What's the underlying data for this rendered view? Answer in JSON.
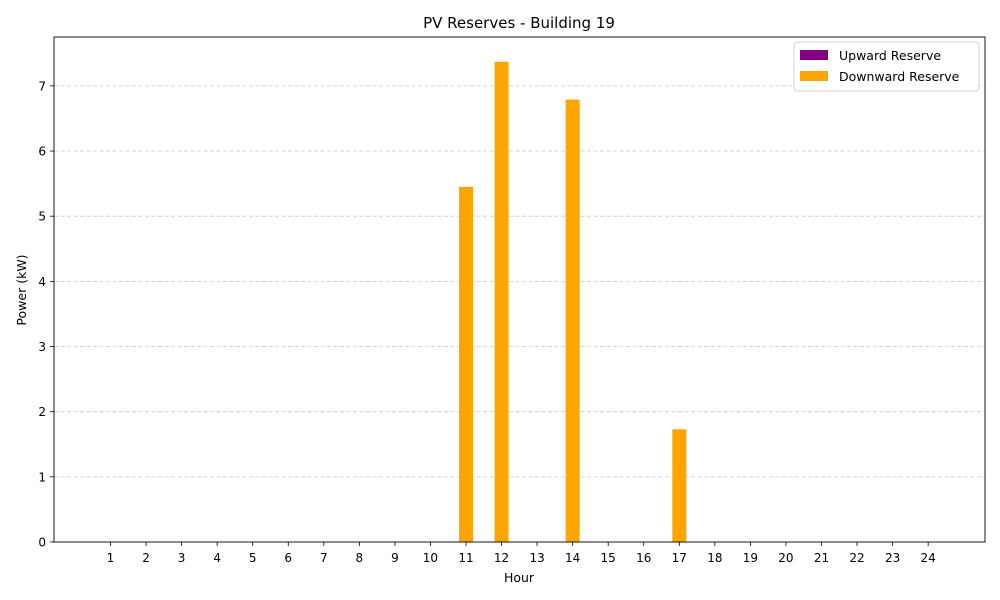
{
  "chart_data": {
    "type": "bar",
    "title": "PV Reserves - Building 19",
    "xlabel": "Hour",
    "ylabel": "Power (kW)",
    "categories": [
      "1",
      "2",
      "3",
      "4",
      "5",
      "6",
      "7",
      "8",
      "9",
      "10",
      "11",
      "12",
      "13",
      "14",
      "15",
      "16",
      "17",
      "18",
      "19",
      "20",
      "21",
      "22",
      "23",
      "24"
    ],
    "yticks": [
      "0",
      "1",
      "2",
      "3",
      "4",
      "5",
      "6",
      "7"
    ],
    "ylim": [
      0,
      7.75
    ],
    "grid": "y-dashed",
    "legend_position": "top-right",
    "series": [
      {
        "name": "Upward Reserve",
        "color": "#800080",
        "values": [
          0,
          0,
          0,
          0,
          0,
          0,
          0,
          0,
          0,
          0,
          0,
          0,
          0,
          0,
          0,
          0,
          0,
          0,
          0,
          0,
          0,
          0,
          0,
          0
        ]
      },
      {
        "name": "Downward Reserve",
        "color": "#FFA500",
        "values": [
          0,
          0,
          0,
          0,
          0,
          0,
          0,
          0,
          0,
          0,
          5.45,
          7.37,
          0,
          6.79,
          0,
          0,
          1.73,
          0,
          0,
          0,
          0,
          0,
          0,
          0
        ]
      }
    ]
  }
}
